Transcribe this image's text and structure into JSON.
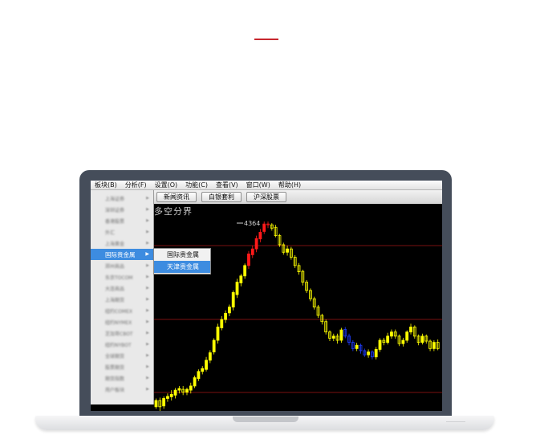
{
  "menubar": [
    "板块(B)",
    "分析(F)",
    "设置(O)",
    "功能(C)",
    "查看(V)",
    "窗口(W)",
    "帮助(H)"
  ],
  "toolbar": [
    "新闻资讯",
    "白银套利",
    "沪深股票"
  ],
  "chart_title": "多空分界",
  "peak_label": "4364",
  "sidebar": {
    "items": [
      "上海证券",
      "深圳证券",
      "香港股票",
      "外汇",
      "上海黄金",
      "国际贵金属",
      "郑州商品",
      "东京TOCOM",
      "大连商品",
      "上海期货",
      "纽约COMEX",
      "纽约NYMEX",
      "芝加哥CBOT",
      "纽约NYBOT",
      "全球期货",
      "股票期货",
      "期货指数",
      "用户板块"
    ],
    "active_index": 5
  },
  "submenu": [
    "国际贵金属",
    "天津贵金属"
  ],
  "submenu_highlight": 1,
  "colors": {
    "up": "#ffff00",
    "down": "#1f3cff",
    "peak": "#ff1a1a",
    "grid": "#7a1010",
    "accent": "#c8272e"
  },
  "candles": [
    [
      360,
      260,
      275,
      255,
      280
    ],
    [
      364,
      275,
      260,
      250,
      282
    ],
    [
      368,
      262,
      280,
      255,
      285
    ],
    [
      372,
      280,
      285,
      272,
      292
    ],
    [
      376,
      284,
      290,
      275,
      300
    ],
    [
      380,
      288,
      300,
      280,
      305
    ],
    [
      384,
      300,
      304,
      292,
      310
    ],
    [
      388,
      302,
      295,
      288,
      310
    ],
    [
      392,
      295,
      302,
      288,
      306
    ],
    [
      396,
      300,
      310,
      292,
      318
    ],
    [
      400,
      310,
      330,
      305,
      335
    ],
    [
      404,
      328,
      345,
      322,
      350
    ],
    [
      408,
      345,
      352,
      338,
      358
    ],
    [
      412,
      350,
      372,
      345,
      380
    ],
    [
      416,
      372,
      390,
      365,
      396
    ],
    [
      420,
      392,
      420,
      386,
      425
    ],
    [
      424,
      420,
      452,
      412,
      460
    ],
    [
      428,
      450,
      470,
      444,
      478
    ],
    [
      432,
      470,
      485,
      462,
      492
    ],
    [
      436,
      486,
      500,
      478,
      506
    ],
    [
      440,
      500,
      535,
      492,
      540
    ],
    [
      444,
      530,
      560,
      522,
      568
    ],
    [
      448,
      558,
      575,
      550,
      580
    ],
    [
      452,
      575,
      600,
      568,
      605
    ],
    [
      456,
      600,
      628,
      592,
      635
    ],
    [
      460,
      626,
      640,
      618,
      648
    ],
    [
      464,
      640,
      665,
      632,
      672
    ],
    [
      468,
      664,
      680,
      656,
      688
    ],
    [
      472,
      682,
      700,
      676,
      706
    ],
    [
      476,
      700,
      698,
      690,
      706
    ],
    [
      480,
      698,
      690,
      684,
      702
    ],
    [
      484,
      692,
      672,
      668,
      698
    ],
    [
      488,
      672,
      650,
      645,
      676
    ],
    [
      492,
      650,
      632,
      626,
      655
    ],
    [
      496,
      632,
      640,
      624,
      648
    ],
    [
      500,
      640,
      620,
      614,
      645
    ],
    [
      504,
      620,
      600,
      594,
      625
    ],
    [
      508,
      600,
      585,
      578,
      606
    ],
    [
      512,
      586,
      560,
      552,
      590
    ],
    [
      516,
      560,
      540,
      534,
      565
    ],
    [
      520,
      540,
      520,
      514,
      545
    ],
    [
      524,
      520,
      500,
      494,
      525
    ],
    [
      528,
      500,
      480,
      474,
      505
    ],
    [
      532,
      480,
      465,
      458,
      484
    ],
    [
      536,
      465,
      440,
      434,
      470
    ],
    [
      540,
      440,
      425,
      418,
      444
    ],
    [
      544,
      425,
      430,
      418,
      436
    ],
    [
      548,
      430,
      420,
      412,
      436
    ],
    [
      552,
      420,
      445,
      414,
      450
    ],
    [
      556,
      446,
      430,
      425,
      452
    ],
    [
      560,
      430,
      415,
      408,
      436
    ],
    [
      564,
      415,
      400,
      394,
      420
    ],
    [
      568,
      400,
      408,
      394,
      414
    ],
    [
      572,
      408,
      395,
      388,
      412
    ],
    [
      576,
      395,
      385,
      380,
      400
    ],
    [
      580,
      385,
      392,
      378,
      398
    ],
    [
      584,
      392,
      380,
      374,
      396
    ],
    [
      588,
      380,
      398,
      374,
      404
    ],
    [
      592,
      398,
      420,
      392,
      425
    ],
    [
      596,
      420,
      415,
      408,
      426
    ],
    [
      600,
      415,
      430,
      410,
      438
    ],
    [
      604,
      430,
      440,
      424,
      446
    ],
    [
      608,
      440,
      430,
      424,
      446
    ],
    [
      612,
      430,
      412,
      406,
      434
    ],
    [
      616,
      412,
      420,
      405,
      426
    ],
    [
      620,
      420,
      440,
      414,
      444
    ],
    [
      624,
      440,
      452,
      434,
      460
    ],
    [
      628,
      452,
      430,
      424,
      456
    ],
    [
      632,
      430,
      415,
      408,
      434
    ],
    [
      636,
      415,
      430,
      410,
      436
    ],
    [
      640,
      430,
      418,
      412,
      434
    ],
    [
      644,
      418,
      400,
      394,
      422
    ],
    [
      648,
      400,
      415,
      394,
      420
    ],
    [
      652,
      415,
      400,
      396,
      422
    ]
  ]
}
